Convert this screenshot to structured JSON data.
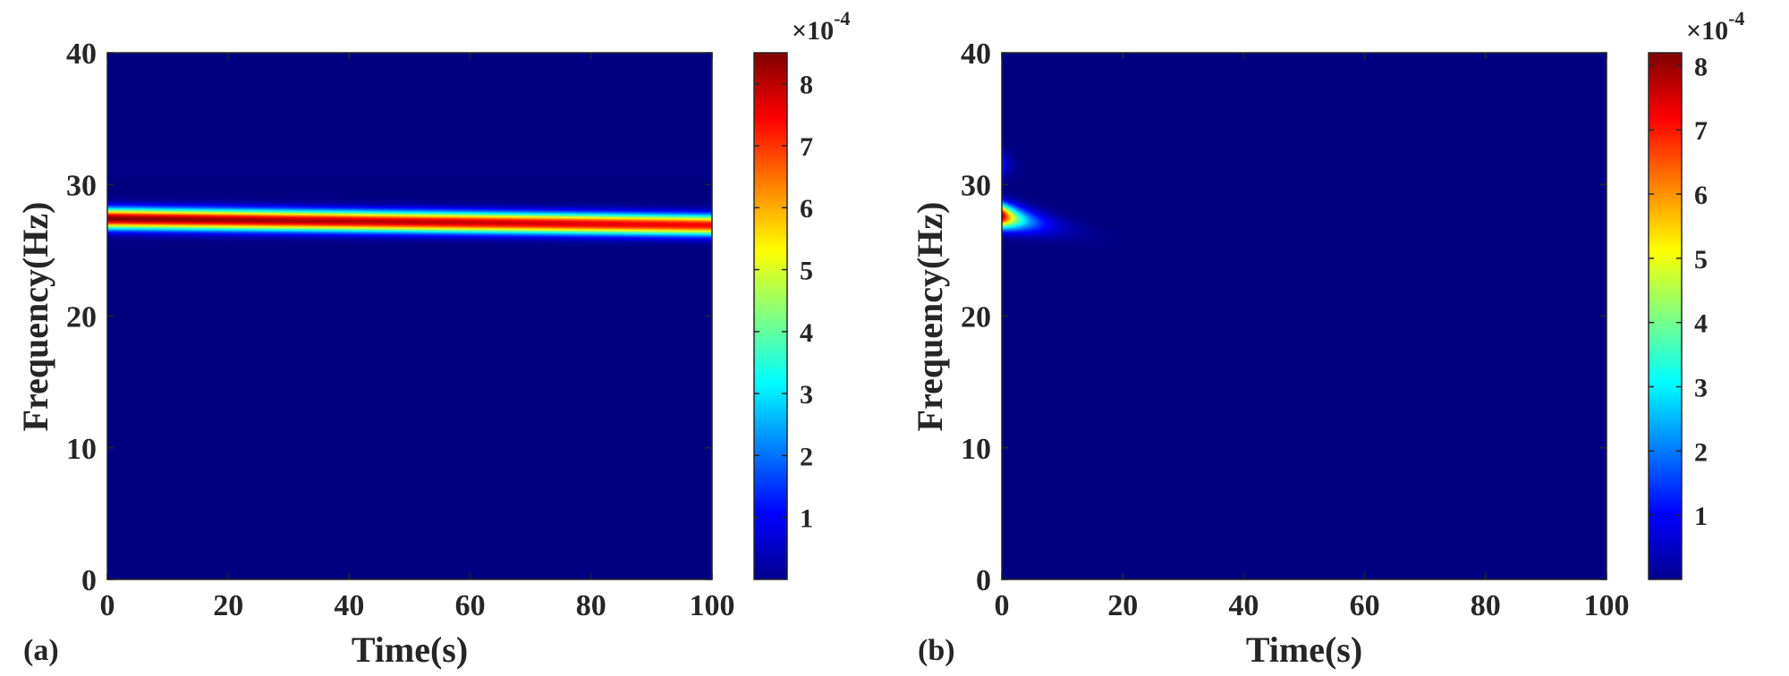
{
  "chart_data": [
    {
      "type": "heatmap",
      "panel_label": "(a)",
      "xlabel": "Time(s)",
      "ylabel": "Frequency(Hz)",
      "xlim": [
        0,
        100
      ],
      "ylim": [
        0,
        40
      ],
      "xticks": [
        0,
        20,
        40,
        60,
        80,
        100
      ],
      "yticks": [
        0,
        10,
        20,
        30,
        40
      ],
      "colorbar": {
        "min": 0,
        "max": 8.5,
        "ticks": [
          1,
          2,
          3,
          4,
          5,
          6,
          7,
          8
        ],
        "exponent_label": "×10",
        "exponent": "-4"
      },
      "ridges": [
        {
          "freq_start": 27.4,
          "freq_end": 26.9,
          "width_hz": 0.75,
          "peak_start": 8.5,
          "peak_end": 7.5,
          "time_start": 0,
          "time_end": 100,
          "decay": 0
        },
        {
          "freq_start": 31.2,
          "freq_end": 31.2,
          "width_hz": 0.8,
          "peak_start": 0.1,
          "peak_end": 0.1,
          "time_start": 0,
          "time_end": 100,
          "decay": 0
        }
      ]
    },
    {
      "type": "heatmap",
      "panel_label": "(b)",
      "xlabel": "Time(s)",
      "ylabel": "Frequency(Hz)",
      "xlim": [
        0,
        100
      ],
      "ylim": [
        0,
        40
      ],
      "xticks": [
        0,
        20,
        40,
        60,
        80,
        100
      ],
      "yticks": [
        0,
        10,
        20,
        30,
        40
      ],
      "colorbar": {
        "min": 0,
        "max": 8.2,
        "ticks": [
          1,
          2,
          3,
          4,
          5,
          6,
          7,
          8
        ],
        "exponent_label": "×10",
        "exponent": "-4"
      },
      "ridges": [
        {
          "freq_start": 27.6,
          "freq_end": 25.8,
          "width_hz": 0.9,
          "peak_start": 8.2,
          "peak_end": 0.0,
          "time_start": 0,
          "time_end": 20,
          "decay": 2.2
        },
        {
          "freq_start": 31.5,
          "freq_end": 31.2,
          "width_hz": 0.9,
          "peak_start": 1.5,
          "peak_end": 0.0,
          "time_start": 0,
          "time_end": 10,
          "decay": 4
        }
      ]
    }
  ]
}
